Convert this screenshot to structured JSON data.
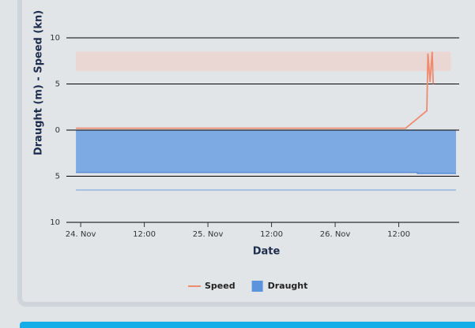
{
  "chart_data": {
    "type": "line",
    "x_label": "Date",
    "y_label": "Draught (m) - Speed (kn)",
    "xlim": [
      -2.7,
      71.4
    ],
    "xticks": [
      {
        "value": 0,
        "label": "24. Nov"
      },
      {
        "value": 12,
        "label": "12:00"
      },
      {
        "value": 24,
        "label": "25. Nov"
      },
      {
        "value": 36,
        "label": "12:00"
      },
      {
        "value": 48,
        "label": "26. Nov"
      },
      {
        "value": 60,
        "label": "12:00"
      }
    ],
    "ylim": [
      -10,
      10
    ],
    "yticks": [
      {
        "value": -10,
        "label": "10"
      },
      {
        "value": -5,
        "label": "5"
      },
      0,
      5,
      10
    ],
    "grid": true,
    "plot_band": {
      "from": 6.4,
      "to": 8.5,
      "x_from": -0.9,
      "x_to": 69.8,
      "color": "#ead6d3"
    },
    "reference_line": {
      "value": -6.5,
      "x_from": -0.9,
      "x_to": 70.8,
      "color": "#6a9de0"
    },
    "series": [
      {
        "name": "Speed",
        "type": "line",
        "color": "#ee8a6e",
        "x": [
          -0.9,
          61.3,
          65.3,
          65.5,
          65.9,
          66.3,
          66.5
        ],
        "values": [
          0.2,
          0.2,
          2.1,
          8.3,
          5.2,
          8.5,
          5.0
        ]
      },
      {
        "name": "Draught",
        "type": "area",
        "color": "#7eaae4",
        "legend_color": "#5b93dd",
        "x": [
          -0.9,
          63.5,
          63.5,
          70.8
        ],
        "values": [
          -4.6,
          -4.6,
          -4.7,
          -4.7
        ]
      }
    ]
  }
}
